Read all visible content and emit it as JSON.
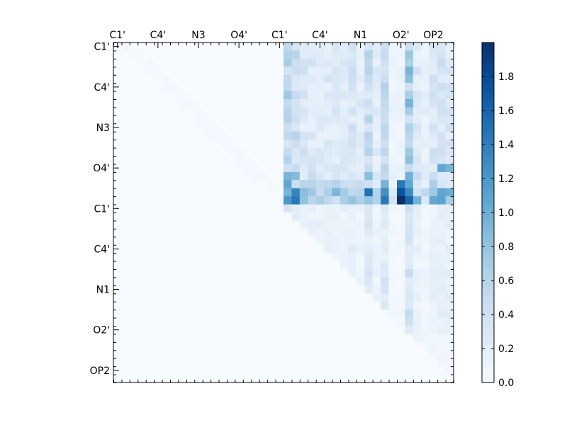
{
  "chart_data": {
    "type": "heatmap",
    "title": "",
    "xlabel": "",
    "ylabel": "",
    "grid": false,
    "colormap": "Blues",
    "color_low": "#f7fbff",
    "color_high": "#08306b",
    "x_tick_labels": [
      "C1'",
      "C4'",
      "N3",
      "O4'",
      "C1'",
      "C4'",
      "N1",
      "O2'",
      "OP2"
    ],
    "y_tick_labels": [
      "C1'",
      "C4'",
      "N3",
      "O4'",
      "C1'",
      "C4'",
      "N1",
      "O2'",
      "OP2"
    ],
    "x_tick_positions": [
      0,
      5,
      10,
      15,
      20,
      25,
      30,
      35,
      39
    ],
    "y_tick_positions": [
      0,
      5,
      10,
      15,
      20,
      25,
      30,
      35,
      40
    ],
    "n_rows": 42,
    "n_cols": 42,
    "value_range": [
      0.0,
      2.0
    ],
    "colorbar": {
      "ticks": [
        0.0,
        0.2,
        0.4,
        0.6,
        0.8,
        1.0,
        1.2,
        1.4,
        1.6,
        1.8
      ],
      "tick_labels": [
        "0.0",
        "0.2",
        "0.4",
        "0.6",
        "0.8",
        "1.0",
        "1.2",
        "1.4",
        "1.6",
        "1.8"
      ]
    },
    "column_strength": [
      0,
      0,
      0,
      0,
      0,
      0,
      0,
      0,
      0,
      0,
      0,
      0,
      0,
      0,
      0,
      0,
      0,
      0,
      0,
      0,
      0,
      1.0,
      0.9,
      0.55,
      0.5,
      0.45,
      0.45,
      0.5,
      0.45,
      0.6,
      0.4,
      0.85,
      0.4,
      0.9,
      0.2,
      0.2,
      1.2,
      0.5,
      0.3,
      0.55,
      0.6,
      0.55
    ],
    "row_strength": [
      0.45,
      0.5,
      0.55,
      0.55,
      0.55,
      0.5,
      0.55,
      0.55,
      0.55,
      0.5,
      0.5,
      0.5,
      0.5,
      0.55,
      0.55,
      0.6,
      0.7,
      0.85,
      1.3,
      1.35,
      0.3,
      0.25,
      0.3,
      0.25,
      0.25,
      0.3,
      0.25,
      0.25,
      0.3,
      0.3,
      0.3,
      0.3,
      0.25,
      0.3,
      0.35,
      0.25,
      0.2,
      0.15,
      0.12,
      0.1,
      0.08,
      0.05
    ],
    "peak_cells": [
      {
        "row": 19,
        "col": 35,
        "value": 2.0
      },
      {
        "row": 18,
        "col": 35,
        "value": 1.75
      },
      {
        "row": 19,
        "col": 36,
        "value": 1.6
      },
      {
        "row": 18,
        "col": 36,
        "value": 1.3
      },
      {
        "row": 19,
        "col": 22,
        "value": 1.45
      },
      {
        "row": 18,
        "col": 22,
        "value": 1.35
      },
      {
        "row": 19,
        "col": 21,
        "value": 1.2
      },
      {
        "row": 17,
        "col": 35,
        "value": 1.45
      },
      {
        "row": 19,
        "col": 39,
        "value": 1.05
      },
      {
        "row": 19,
        "col": 40,
        "value": 1.1
      },
      {
        "row": 15,
        "col": 40,
        "value": 1.05
      },
      {
        "row": 15,
        "col": 41,
        "value": 0.95
      }
    ]
  }
}
